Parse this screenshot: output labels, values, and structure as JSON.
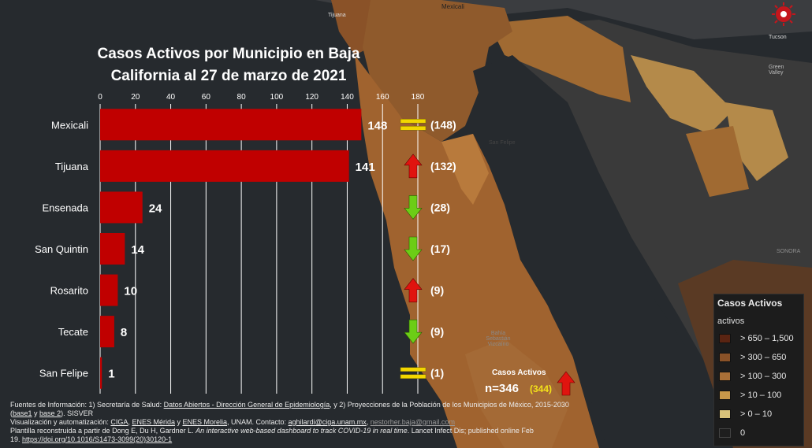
{
  "chart_data": {
    "type": "bar",
    "title": "Casos Activos por Municipio en Baja California al 27 de marzo de 2021",
    "categories": [
      "Mexicali",
      "Tijuana",
      "Ensenada",
      "San Quintin",
      "Rosarito",
      "Tecate",
      "San Felipe"
    ],
    "values": [
      148,
      141,
      24,
      14,
      10,
      8,
      1
    ],
    "previous": [
      148,
      132,
      28,
      17,
      9,
      9,
      1
    ],
    "previous_labels": [
      "(148)",
      "(132)",
      "(28)",
      "(17)",
      "(9)",
      "(9)",
      "(1)"
    ],
    "trend": [
      "equal",
      "up",
      "down",
      "down",
      "up",
      "down",
      "equal"
    ],
    "xlim": [
      0,
      180
    ],
    "xticks": [
      0,
      20,
      40,
      60,
      80,
      100,
      120,
      140,
      160,
      180
    ],
    "grid": true,
    "bar_color": "#c00000"
  },
  "total": {
    "label": "Casos Activos",
    "value": "n=346",
    "previous": "(344)",
    "trend": "up"
  },
  "legend": {
    "title": "Casos Activos",
    "subtitle": "activos",
    "items": [
      {
        "label": "> 650 – 1,500",
        "color": "#5a2412"
      },
      {
        "label": "> 300 – 650",
        "color": "#8a5228"
      },
      {
        "label": "> 100 – 300",
        "color": "#a86f37"
      },
      {
        "label": "> 10 – 100",
        "color": "#c8984a"
      },
      {
        "label": "> 0 – 10",
        "color": "#d9c27a"
      },
      {
        "label": "0",
        "color": "#1e1e1e"
      }
    ]
  },
  "map_labels": {
    "tijuana": "Tijuana",
    "mexicali": "Mexicali",
    "tucson": "Tucson",
    "green_valley": "Green Valley",
    "san_felipe": "San Felipe",
    "sonora": "SONORA",
    "bahia": "Bahía Sebastián Vizcaíno"
  },
  "footer": {
    "line1_pre": "Fuentes de Información: 1) Secretaría de Salud: ",
    "line1_link": "Datos Abiertos - Dirección General de Epidemiología",
    "line1_post": ", y 2) Proyecciones de la Población de los Municipios de México, 2015-2030",
    "line2_open": "(",
    "line2_base1": "base1",
    "line2_y": " y ",
    "line2_base2": "base 2",
    "line2_post": "). SISVER",
    "line3_pre": "Visualización y automatización: ",
    "line3_ciga": "CIGA",
    "line3_sep1": ", ",
    "line3_merida": "ENES Mérida",
    "line3_y": " y ",
    "line3_morelia": "ENES Morelia",
    "line3_mid": ", UNAM. Contacto: ",
    "line3_email": "aghilardi@ciga.unam.mx",
    "line3_sep2": ", ",
    "line3_email2": "nestorher.baja@gmail.com",
    "line4_pre": "Plantilla reconstruida a partir de Dong E, Du H, Gardner L. ",
    "line4_italic": "An interactive web-based dashboard to track COVID-19 in real time",
    "line4_post": ". Lancet Infect Dis; published online Feb",
    "line5_pre": "19. ",
    "line5_link": "https://doi.org/10.1016/S1473-3099(20)30120-1"
  },
  "colors": {
    "up": "#e0140f",
    "down": "#6ccd16",
    "equal": "#f2d600",
    "background": "#262a2e"
  },
  "icons": {
    "logo": "virus-logo-icon"
  }
}
